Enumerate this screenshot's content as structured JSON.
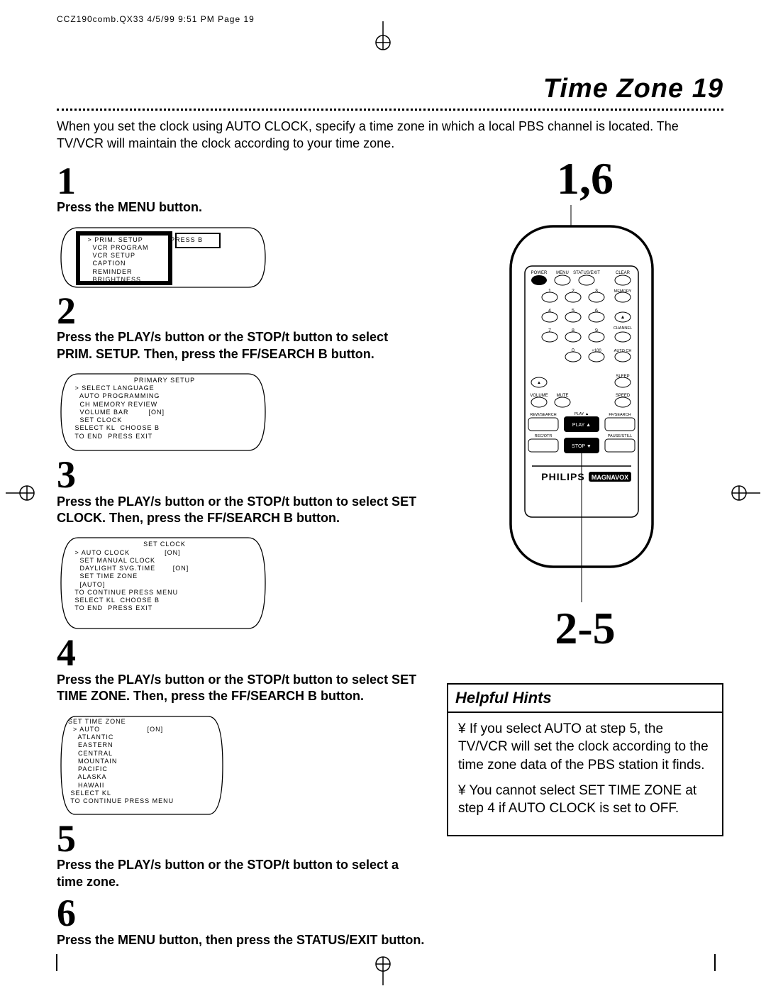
{
  "printHeader": "CCZ190comb.QX33  4/5/99 9:51 PM  Page 19",
  "title": "Time Zone  19",
  "intro": "When you set the clock using AUTO CLOCK, specify a time zone in which a local PBS channel is located. The TV/VCR will maintain the clock according to your time zone.",
  "steps": {
    "s1": {
      "num": "1",
      "text": "Press the MENU button."
    },
    "s2": {
      "num": "2",
      "text": "Press the PLAY/s  button or the STOP/t  button to select PRIM. SETUP.  Then, press the FF/SEARCH B button."
    },
    "s3": {
      "num": "3",
      "text": "Press the PLAY/s  button or the STOP/t  button to select SET CLOCK. Then, press the FF/SEARCH B button."
    },
    "s4": {
      "num": "4",
      "text": "Press the PLAY/s  button or the STOP/t  button to select SET TIME ZONE. Then, press the FF/SEARCH B button."
    },
    "s5": {
      "num": "5",
      "text": "Press the PLAY/s  button or the STOP/t  button to select a time zone."
    },
    "s6": {
      "num": "6",
      "text": "Press the MENU button, then press the STATUS/EXIT button."
    }
  },
  "screens": {
    "menu1": {
      "lines": [
        " > PRIM. SETUP           PRESS B",
        "   VCR PROGRAM",
        "   VCR SETUP",
        "   CAPTION",
        "   REMINDER",
        "   BRIGHTNESS"
      ],
      "boxLeft": "PRESS B"
    },
    "primary": {
      "title": "PRIMARY SETUP",
      "lines": [
        " > SELECT LANGUAGE",
        "   AUTO PROGRAMMING",
        "   CH MEMORY REVIEW",
        "   VOLUME BAR        [ON]",
        "   SET CLOCK",
        "",
        " SELECT KL  CHOOSE B",
        " TO END  PRESS EXIT"
      ]
    },
    "setclock": {
      "title": "SET CLOCK",
      "lines": [
        " > AUTO CLOCK              [ON]",
        "   SET MANUAL CLOCK",
        "   DAYLIGHT SVG.TIME       [ON]",
        "   SET TIME ZONE",
        "   [AUTO]",
        "",
        " TO CONTINUE PRESS MENU",
        " SELECT KL  CHOOSE B",
        " TO END  PRESS EXIT"
      ]
    },
    "timezone": {
      "title": "SET TIME ZONE",
      "lines": [
        "  > AUTO                   [ON]",
        "    ATLANTIC",
        "    EASTERN",
        "    CENTRAL",
        "    MOUNTAIN",
        "    PACIFIC",
        "    ALASKA",
        "    HAWAII",
        "",
        " SELECT KL",
        " TO CONTINUE PRESS MENU"
      ]
    }
  },
  "callouts": {
    "top": "1,6",
    "bottom": "2-5"
  },
  "remote": {
    "row1": [
      "POWER",
      "MENU",
      "STATUS/EXIT",
      "CLEAR"
    ],
    "numRow1": [
      "1",
      "2",
      "3"
    ],
    "numRow1Right": "MEMORY",
    "numRow2": [
      "4",
      "5",
      "6"
    ],
    "numRow2Right": "▲",
    "numRow3": [
      "7",
      "8",
      "9"
    ],
    "numRow3Right": "CHANNEL",
    "numRow4": [
      "0",
      "+100"
    ],
    "numRow4Right": "AUTO CH",
    "rowA": [
      "▲",
      "",
      "",
      "SLEEP"
    ],
    "rowB": [
      "VOLUME",
      "MUTE",
      "",
      "SPEED"
    ],
    "playRow": [
      "REW/SEARCH",
      "PLAY ▲",
      "FF/SEARCH"
    ],
    "stopRow": [
      "REC/OTR",
      "STOP ▼",
      "PAUSE/STILL"
    ],
    "brand": "PHILIPS",
    "brand2": "MAGNAVOX"
  },
  "hints": {
    "title": "Helpful Hints",
    "p1": "¥ If you select AUTO at step 5, the TV/VCR will set the clock according to the time zone data of the PBS station it finds.",
    "p2": "¥ You cannot select SET TIME ZONE at step 4 if AUTO CLOCK is set to OFF."
  }
}
